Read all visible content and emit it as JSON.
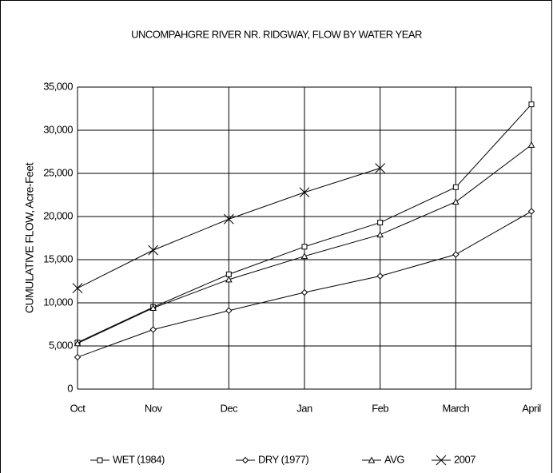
{
  "chart_data": {
    "type": "line",
    "title": "UNCOMPAHGRE RIVER NR. RIDGWAY, FLOW BY WATER YEAR",
    "y_label": "CUMULATIVE FLOW, Acre-Feet",
    "categories": [
      "Oct",
      "Nov",
      "Dec",
      "Jan",
      "Feb",
      "March",
      "April"
    ],
    "series": [
      {
        "name": "WET (1984)",
        "color": "#000000",
        "marker": "square",
        "values": [
          5400,
          9500,
          13300,
          16500,
          19300,
          23400,
          33000
        ]
      },
      {
        "name": "DRY (1977)",
        "color": "#000000",
        "marker": "diamond",
        "values": [
          3700,
          6900,
          9100,
          11200,
          13100,
          15600,
          20600
        ]
      },
      {
        "name": "AVG",
        "color": "#000000",
        "marker": "triangle",
        "values": [
          5300,
          9400,
          12700,
          15400,
          17900,
          21700,
          28300
        ]
      },
      {
        "name": "2007",
        "color": "#000000",
        "marker": "x",
        "values": [
          11700,
          16100,
          19700,
          22800,
          25600,
          null,
          null
        ]
      }
    ],
    "ylim": [
      0,
      35000
    ],
    "yticks": [
      0,
      {
        "value": 5000,
        "label": "5,000"
      },
      {
        "value": 10000,
        "label": "10,000"
      },
      {
        "value": 15000,
        "label": "15,000"
      },
      {
        "value": 20000,
        "label": "20,000"
      },
      {
        "value": 25000,
        "label": "25,000"
      },
      {
        "value": 30000,
        "label": "30,000"
      },
      {
        "value": 35000,
        "label": "35,000"
      }
    ],
    "grid": true,
    "legend": "bottom"
  }
}
